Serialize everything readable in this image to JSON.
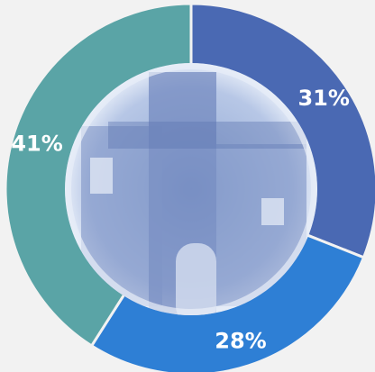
{
  "chart_data": {
    "type": "donut",
    "values": [
      31,
      28,
      41
    ],
    "value_labels": [
      "31%",
      "28%",
      "41%"
    ],
    "colors": [
      "#4a69b3",
      "#2e7fd5",
      "#5aa4a6"
    ]
  }
}
